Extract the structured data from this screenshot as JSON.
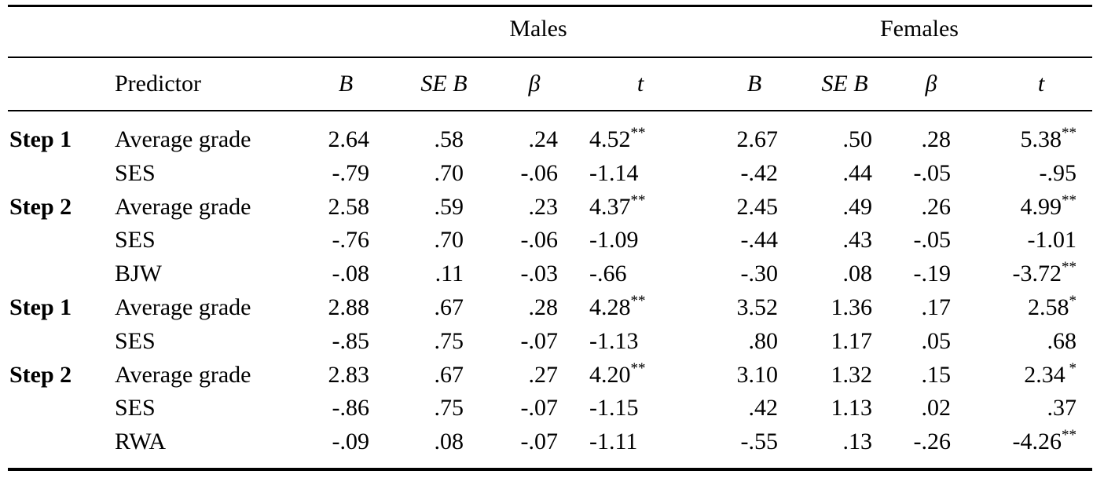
{
  "groups": {
    "males": "Males",
    "females": "Females"
  },
  "headers": {
    "predictor": "Predictor",
    "b": "B",
    "se_b": "SE B",
    "beta": "β",
    "t": "t"
  },
  "rows": [
    {
      "step": "Step 1",
      "predictor": "Average grade",
      "mB": "2.64",
      "mSE": ".58",
      "mBeta": ".24",
      "mT": "4.52",
      "mSig": "**",
      "fB": "2.67",
      "fSE": ".50",
      "fBeta": ".28",
      "fT": "5.38",
      "fSig": "**"
    },
    {
      "step": "",
      "predictor": "SES",
      "mB": "-.79",
      "mSE": ".70",
      "mBeta": "-.06",
      "mT": "-1.14",
      "mSig": "",
      "fB": "-.42",
      "fSE": ".44",
      "fBeta": "-.05",
      "fT": "-.95",
      "fSig": ""
    },
    {
      "step": "Step 2",
      "predictor": "Average grade",
      "mB": "2.58",
      "mSE": ".59",
      "mBeta": ".23",
      "mT": "4.37",
      "mSig": "**",
      "fB": "2.45",
      "fSE": ".49",
      "fBeta": ".26",
      "fT": "4.99",
      "fSig": "**"
    },
    {
      "step": "",
      "predictor": "SES",
      "mB": "-.76",
      "mSE": ".70",
      "mBeta": "-.06",
      "mT": "-1.09",
      "mSig": "",
      "fB": "-.44",
      "fSE": ".43",
      "fBeta": "-.05",
      "fT": "-1.01",
      "fSig": ""
    },
    {
      "step": "",
      "predictor": "BJW",
      "mB": "-.08",
      "mSE": ".11",
      "mBeta": "-.03",
      "mT": "-.66",
      "mSig": "",
      "fB": "-.30",
      "fSE": ".08",
      "fBeta": "-.19",
      "fT": "-3.72",
      "fSig": "**"
    },
    {
      "step": "Step 1",
      "predictor": "Average grade",
      "mB": "2.88",
      "mSE": ".67",
      "mBeta": ".28",
      "mT": "4.28",
      "mSig": "**",
      "fB": "3.52",
      "fSE": "1.36",
      "fBeta": ".17",
      "fT": "2.58",
      "fSig": "*"
    },
    {
      "step": "",
      "predictor": "SES",
      "mB": "-.85",
      "mSE": ".75",
      "mBeta": "-.07",
      "mT": "-1.13",
      "mSig": "",
      "fB": ".80",
      "fSE": "1.17",
      "fBeta": ".05",
      "fT": ".68",
      "fSig": ""
    },
    {
      "step": "Step 2",
      "predictor": "Average grade",
      "mB": "2.83",
      "mSE": ".67",
      "mBeta": ".27",
      "mT": "4.20",
      "mSig": "**",
      "fB": "3.10",
      "fSE": "1.32",
      "fBeta": ".15",
      "fT": "2.34",
      "fSig": " *"
    },
    {
      "step": "",
      "predictor": "SES",
      "mB": "-.86",
      "mSE": ".75",
      "mBeta": "-.07",
      "mT": "-1.15",
      "mSig": "",
      "fB": ".42",
      "fSE": "1.13",
      "fBeta": ".02",
      "fT": ".37",
      "fSig": ""
    },
    {
      "step": "",
      "predictor": "RWA",
      "mB": "-.09",
      "mSE": ".08",
      "mBeta": "-.07",
      "mT": "-1.11",
      "mSig": "",
      "fB": "-.55",
      "fSE": ".13",
      "fBeta": "-.26",
      "fT": "-4.26",
      "fSig": "**"
    }
  ]
}
